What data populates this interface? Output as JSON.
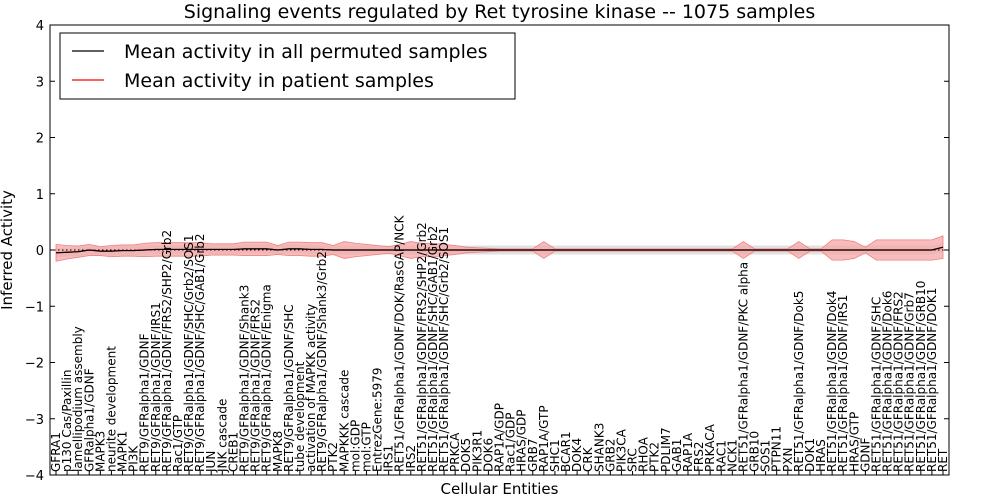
{
  "chart_data": {
    "type": "line",
    "title": "Signaling events regulated by Ret tyrosine kinase -- 1075 samples",
    "xlabel": "Cellular Entities",
    "ylabel": "Inferred Activity",
    "ylim": [
      -4,
      4
    ],
    "yticks": [
      -4,
      -3,
      -2,
      -1,
      0,
      1,
      2,
      3,
      4
    ],
    "legend_position": "top-left",
    "colors": {
      "all_permuted": "#000000",
      "patient": "#ff0000",
      "patient_band": "#f4a6a6",
      "permuted_band": "#d9d9d9",
      "dotted_ref": "#000000"
    },
    "categories": [
      "GFRA1",
      "p130 Cas/Paxillin",
      "lamellipodium assembly",
      "GFRalpha1/GDNF",
      "MAPK3",
      "neurite development",
      "MAPK1",
      "PI3K",
      "RET9/GFRalpha1/GDNF",
      "RET9/GFRalpha1/GDNF/IRS1",
      "RET9/GFRalpha1/GDNF/FRS2/SHP2/Grb2",
      "Rac1/GTP",
      "RET9/GFRalpha1/GDNF/SHC/Grb2/SOS1",
      "RET9/GFRalpha1/GDNF/SHC/GAB1/Grb2",
      "JUN",
      "JNK cascade",
      "CREB1",
      "RET9/GFRalpha1/GDNF/Shank3",
      "RET9/GFRalpha1/GDNF/FRS2",
      "RET9/GFRalpha1/GDNF/Enigma",
      "MAPK8",
      "RET9/GFRalpha1/GDNF/SHC",
      "tube development",
      "activation of MAPKK activity",
      "RET9/GFRalpha1/GDNF/Shank3/Grb2",
      "PTK2",
      "MAPKKK cascade",
      "mol:GDP",
      "mol:GTP",
      "EntrezGene:5979",
      "IRS1",
      "RET51/GFRalpha1/GDNF/DOK/RasGAP/NCK",
      "IRS2",
      "RET51/GFRalpha1/GDNF/FRS2/SHP2/Grb2",
      "RET51/GFRalpha1/GDNF/SHC/GAB1/Grb2",
      "RET51/GFRalpha1/GDNF/SHC/Grb2/SOS1",
      "PRKCA",
      "DOK5",
      "PIK3R1",
      "DOK6",
      "RAP1A/GDP",
      "Rac1/GDP",
      "HRAS/GDP",
      "GRB7",
      "RAP1A/GTP",
      "SHC1",
      "BCAR1",
      "DOK4",
      "CRK",
      "SHANK3",
      "GRB2",
      "PIK3CA",
      "SRC",
      "RHOA",
      "PTK2",
      "PDLIM7",
      "GAB1",
      "RAP1A",
      "FRS2",
      "PRKACA",
      "RAC1",
      "NCK1",
      "RET51/GFRalpha1/GDNF/PKC alpha",
      "GRB10",
      "SOS1",
      "PTPN11",
      "PXN",
      "RET51/GFRalpha1/GDNF/Dok5",
      "DOK1",
      "HRAS",
      "RET51/GFRalpha1/GDNF/Dok4",
      "RET51/GFRalpha1/GDNF/IRS1",
      "HRAS/GTP",
      "GDNF",
      "RET51/GFRalpha1/GDNF/SHC",
      "RET51/GFRalpha1/GDNF/Dok6",
      "RET51/GFRalpha1/GDNF/FRS2",
      "RET51/GFRalpha1/GDNF/Grb7",
      "RET51/GFRalpha1/GDNF/GRB10",
      "RET51/GFRalpha1/GDNF/DOK1",
      "RET"
    ],
    "series": [
      {
        "name": "Mean activity in all permuted samples",
        "values": [
          -0.05,
          -0.04,
          -0.03,
          0.0,
          -0.02,
          -0.02,
          -0.01,
          -0.01,
          0.0,
          0.01,
          0.01,
          0.01,
          0.01,
          0.01,
          0.01,
          0.01,
          0.01,
          0.02,
          0.02,
          0.02,
          0.0,
          0.02,
          0.02,
          0.01,
          0.01,
          0.0,
          0.0,
          0.0,
          0.0,
          0.0,
          0.0,
          0.0,
          0.0,
          0.0,
          0.0,
          0.0,
          0.0,
          0.0,
          0.0,
          0.0,
          0.0,
          0.0,
          0.0,
          0.0,
          0.0,
          0.0,
          0.0,
          0.0,
          0.0,
          0.0,
          0.0,
          0.0,
          0.0,
          0.0,
          0.0,
          0.0,
          0.0,
          0.0,
          0.0,
          0.0,
          0.0,
          0.0,
          0.0,
          0.0,
          0.0,
          0.0,
          0.0,
          0.0,
          0.0,
          0.0,
          0.0,
          0.0,
          0.0,
          0.0,
          0.0,
          0.0,
          0.0,
          0.0,
          0.0,
          0.0,
          0.05
        ]
      },
      {
        "name": "Mean activity in patient samples",
        "values": [
          -0.05,
          -0.04,
          -0.03,
          0.0,
          -0.02,
          -0.02,
          -0.01,
          -0.01,
          0.0,
          0.01,
          0.01,
          0.01,
          0.01,
          0.01,
          0.01,
          0.01,
          0.01,
          0.02,
          0.02,
          0.02,
          0.0,
          0.02,
          0.02,
          0.01,
          0.01,
          0.0,
          0.0,
          0.0,
          0.0,
          0.0,
          0.0,
          0.0,
          0.0,
          0.0,
          0.0,
          0.0,
          0.0,
          0.0,
          0.0,
          0.0,
          0.0,
          0.0,
          0.0,
          0.0,
          0.0,
          0.0,
          0.0,
          0.0,
          0.0,
          0.0,
          0.0,
          0.0,
          0.0,
          0.0,
          0.0,
          0.0,
          0.0,
          0.0,
          0.0,
          0.0,
          0.0,
          0.0,
          0.0,
          0.0,
          0.0,
          0.0,
          0.0,
          0.0,
          0.0,
          0.0,
          0.0,
          0.0,
          0.0,
          0.0,
          0.0,
          0.0,
          0.0,
          0.0,
          0.0,
          0.0,
          0.05
        ],
        "spread": [
          0.15,
          0.12,
          0.1,
          0.1,
          0.08,
          0.1,
          0.1,
          0.1,
          0.12,
          0.12,
          0.12,
          0.12,
          0.12,
          0.12,
          0.1,
          0.1,
          0.1,
          0.12,
          0.12,
          0.12,
          0.08,
          0.12,
          0.12,
          0.12,
          0.12,
          0.08,
          0.15,
          0.12,
          0.1,
          0.08,
          0.06,
          0.1,
          0.15,
          0.12,
          0.12,
          0.1,
          0.08,
          0.05,
          0.04,
          0.03,
          0.02,
          0.02,
          0.02,
          0.02,
          0.15,
          0.02,
          0.02,
          0.02,
          0.02,
          0.02,
          0.02,
          0.02,
          0.02,
          0.02,
          0.02,
          0.02,
          0.02,
          0.02,
          0.02,
          0.02,
          0.02,
          0.02,
          0.15,
          0.02,
          0.02,
          0.02,
          0.02,
          0.15,
          0.02,
          0.02,
          0.18,
          0.18,
          0.15,
          0.05,
          0.18,
          0.18,
          0.18,
          0.18,
          0.18,
          0.18,
          0.2
        ]
      }
    ]
  }
}
